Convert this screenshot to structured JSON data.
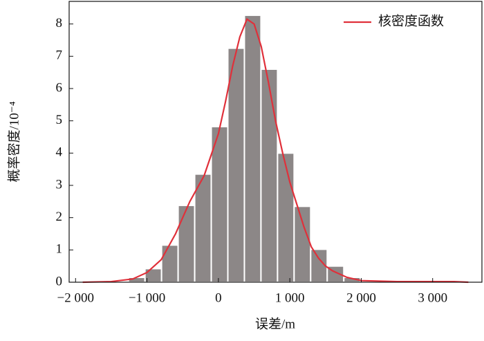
{
  "chart_data": {
    "type": "histogram",
    "x_label": "误差/m",
    "y_label": "概率密度/10⁻⁴",
    "bins": [
      -1260,
      -1028,
      -796,
      -564,
      -332,
      -100,
      132,
      364,
      596,
      828,
      1060,
      1292,
      1524,
      1756,
      1988
    ],
    "values": [
      0.15,
      0.42,
      1.15,
      2.38,
      3.35,
      4.82,
      7.25,
      8.27,
      6.6,
      4.0,
      2.35,
      1.02,
      0.5,
      0.15
    ],
    "color": "#8c8787",
    "xlim": [
      -2090,
      3690
    ],
    "ylim": [
      0,
      8.7
    ],
    "xticks": [
      {
        "value": -2000,
        "label": "−2 000"
      },
      {
        "value": -1000,
        "label": "−1 000"
      },
      0,
      {
        "value": 1000,
        "label": "1 000"
      },
      {
        "value": 2000,
        "label": "2 000"
      },
      {
        "value": 3000,
        "label": "3 000"
      }
    ],
    "yticks": [
      0,
      1,
      2,
      3,
      4,
      5,
      6,
      7,
      8
    ],
    "legend": "upper right",
    "series": [
      {
        "name": "核密度函数",
        "type": "line",
        "color": "#e0303a",
        "x": [
          -1900,
          -1500,
          -1200,
          -1000,
          -800,
          -600,
          -400,
          -200,
          0,
          100,
          200,
          300,
          400,
          500,
          600,
          700,
          800,
          900,
          1000,
          1100,
          1200,
          1300,
          1400,
          1500,
          1600,
          1800,
          2000,
          2500,
          3000,
          3300,
          3500
        ],
        "values": [
          0,
          0.02,
          0.1,
          0.3,
          0.7,
          1.5,
          2.5,
          3.3,
          4.6,
          5.6,
          6.7,
          7.6,
          8.15,
          8.0,
          7.3,
          6.2,
          5.0,
          4.0,
          3.1,
          2.4,
          1.7,
          1.1,
          0.75,
          0.5,
          0.35,
          0.15,
          0.05,
          0.02,
          0.02,
          0.02,
          0
        ]
      }
    ]
  }
}
